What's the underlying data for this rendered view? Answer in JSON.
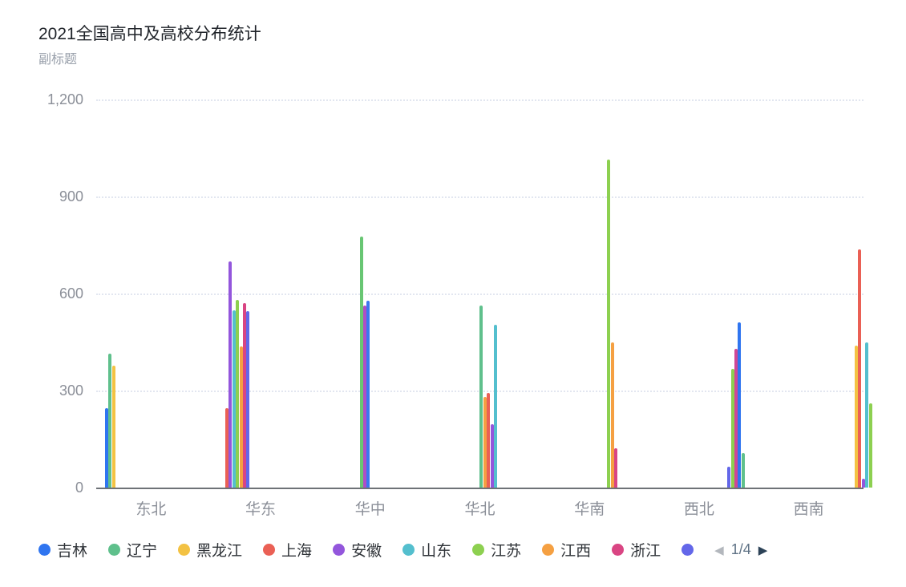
{
  "header": {
    "title": "2021全国高中及高校分布统计",
    "subtitle": "副标题"
  },
  "chart_data": {
    "type": "bar",
    "title": "2021全国高中及高校分布统计",
    "subtitle": "副标题",
    "xlabel": "",
    "ylabel": "",
    "legend_position": "bottom",
    "grid": "horizontal-dotted",
    "y_axis": {
      "min": 0,
      "max": 1200,
      "ticks": [
        {
          "label": "0",
          "value": 0
        },
        {
          "label": "300",
          "value": 300
        },
        {
          "label": "600",
          "value": 600
        },
        {
          "label": "900",
          "value": 900
        },
        {
          "label": "1,200",
          "value": 1200
        }
      ]
    },
    "categories": [
      "东北",
      "华东",
      "华中",
      "华北",
      "华南",
      "西北",
      "西南"
    ],
    "total_series_slots": 31,
    "groups": [
      {
        "category": "东北",
        "bars": [
          {
            "series": "吉林",
            "color": "#2f75f0",
            "value": 245,
            "slot": 0
          },
          {
            "series": "辽宁",
            "color": "#5fc08c",
            "value": 415,
            "slot": 1
          },
          {
            "series": "黑龙江",
            "color": "#f3c243",
            "value": 378,
            "slot": 2
          }
        ]
      },
      {
        "category": "华东",
        "bars": [
          {
            "series": "上海",
            "color": "#ea6055",
            "value": 245,
            "slot": 3
          },
          {
            "series": "安徽",
            "color": "#9356dc",
            "value": 700,
            "slot": 4
          },
          {
            "series": "山东",
            "color": "#54bfce",
            "value": 548,
            "slot": 5
          },
          {
            "series": "江苏",
            "color": "#8dd050",
            "value": 579,
            "slot": 6
          },
          {
            "series": "江西",
            "color": "#f5a042",
            "value": 436,
            "slot": 7
          },
          {
            "series": "浙江",
            "color": "#d94583",
            "value": 570,
            "slot": 8
          },
          {
            "series": "",
            "color": "#6367e9",
            "value": 545,
            "slot": 9
          }
        ]
      },
      {
        "category": "华中",
        "bars": [
          {
            "series": "",
            "color": "#68c673",
            "value": 775,
            "slot": 10
          },
          {
            "series": "",
            "color": "#b04ec3",
            "value": 562,
            "slot": 11
          },
          {
            "series": "",
            "color": "#3b76f0",
            "value": 578,
            "slot": 12
          }
        ]
      },
      {
        "category": "华北",
        "bars": [
          {
            "series": "",
            "color": "#5fc08c",
            "value": 562,
            "slot": 13
          },
          {
            "series": "",
            "color": "#f5a042",
            "value": 280,
            "slot": 14
          },
          {
            "series": "",
            "color": "#ea6055",
            "value": 292,
            "slot": 15
          },
          {
            "series": "",
            "color": "#9356dc",
            "value": 196,
            "slot": 16
          },
          {
            "series": "",
            "color": "#54bfce",
            "value": 503,
            "slot": 17
          }
        ]
      },
      {
        "category": "华南",
        "bars": [
          {
            "series": "",
            "color": "#8dd050",
            "value": 1015,
            "slot": 18
          },
          {
            "series": "",
            "color": "#f5a042",
            "value": 450,
            "slot": 19
          },
          {
            "series": "",
            "color": "#d94583",
            "value": 122,
            "slot": 20
          }
        ]
      },
      {
        "category": "西北",
        "bars": [
          {
            "series": "",
            "color": "#6367e9",
            "value": 64,
            "slot": 21
          },
          {
            "series": "",
            "color": "#8dd050",
            "value": 367,
            "slot": 22
          },
          {
            "series": "",
            "color": "#ce4796",
            "value": 428,
            "slot": 23
          },
          {
            "series": "",
            "color": "#2f75f0",
            "value": 510,
            "slot": 24
          },
          {
            "series": "",
            "color": "#5fc08c",
            "value": 106,
            "slot": 25
          }
        ]
      },
      {
        "category": "西南",
        "bars": [
          {
            "series": "",
            "color": "#f3c243",
            "value": 440,
            "slot": 26
          },
          {
            "series": "",
            "color": "#ea6055",
            "value": 737,
            "slot": 27
          },
          {
            "series": "",
            "color": "#9356dc",
            "value": 28,
            "slot": 28
          },
          {
            "series": "",
            "color": "#54bfce",
            "value": 450,
            "slot": 29
          },
          {
            "series": "",
            "color": "#8dd050",
            "value": 260,
            "slot": 30
          }
        ]
      }
    ]
  },
  "legend": {
    "items": [
      {
        "label": "吉林",
        "color": "#2f75f0"
      },
      {
        "label": "辽宁",
        "color": "#5fc08c"
      },
      {
        "label": "黑龙江",
        "color": "#f3c243"
      },
      {
        "label": "上海",
        "color": "#ea6055"
      },
      {
        "label": "安徽",
        "color": "#9356dc"
      },
      {
        "label": "山东",
        "color": "#54bfce"
      },
      {
        "label": "江苏",
        "color": "#8dd050"
      },
      {
        "label": "江西",
        "color": "#f5a042"
      },
      {
        "label": "浙江",
        "color": "#d94583"
      },
      {
        "label": "",
        "color": "#6367e9"
      }
    ],
    "pagination": {
      "text": "1/4",
      "prev_color": "#b3b7bd",
      "next_color": "#2c4257"
    }
  },
  "colors": {
    "axis_line": "#6e7277",
    "grid_line": "#e2e6f0",
    "axis_label": "#8b8f98",
    "title_text": "#1f2329",
    "subtitle_text": "#99a0ab",
    "background": "#ffffff"
  }
}
